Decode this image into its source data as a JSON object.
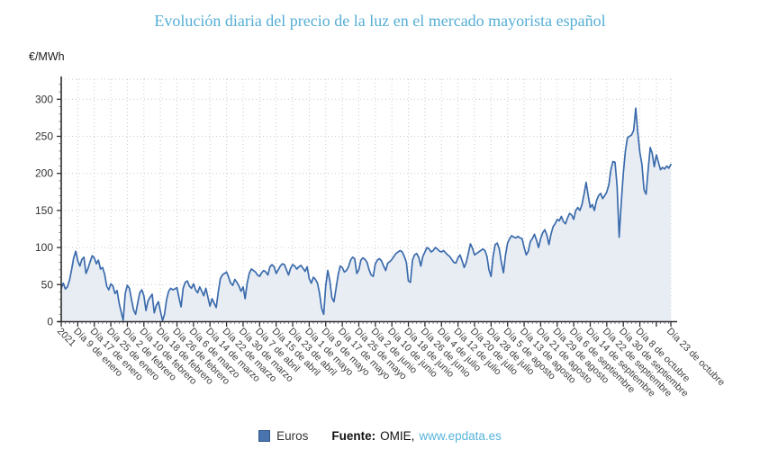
{
  "title": "Evolución diaria del precio de la luz en el mercado mayorista español",
  "y_axis_unit": "€/MWh",
  "legend": {
    "items": [
      {
        "label": "Euros",
        "color": "#4a74ad"
      }
    ]
  },
  "footer": {
    "source_label": "Fuente:",
    "source_name": "OMIE,",
    "source_link": "www.epdata.es"
  },
  "colors": {
    "title": "#54aed6",
    "series_line": "#3b6bac",
    "series_area": "#e8edf4",
    "link": "#58b3dc",
    "axis": "#2d2d2d",
    "grid": "#c9c9c9"
  },
  "chart_data": {
    "type": "area",
    "title": "Evolución diaria del precio de la luz en el mercado mayorista español",
    "xlabel": "",
    "ylabel": "€/MWh",
    "ylim": [
      0,
      300
    ],
    "y_ticks": [
      0,
      50,
      100,
      150,
      200,
      250,
      300
    ],
    "grid": true,
    "legend_position": "bottom",
    "x_days_total": 295,
    "x_ticks": [
      {
        "d": 0,
        "label": "2021"
      },
      {
        "d": 8,
        "label": "Día 9 de enero"
      },
      {
        "d": 16,
        "label": "Día 17 de enero"
      },
      {
        "d": 24,
        "label": "Día 25 de enero"
      },
      {
        "d": 32,
        "label": "Día 2 de febrero"
      },
      {
        "d": 40,
        "label": "Día 10 de febrero"
      },
      {
        "d": 48,
        "label": "Día 18 de febrero"
      },
      {
        "d": 56,
        "label": "Día 26 de febrero"
      },
      {
        "d": 64,
        "label": "Día 6 de marzo"
      },
      {
        "d": 72,
        "label": "Día 14 de marzo"
      },
      {
        "d": 80,
        "label": "Día 22 de marzo"
      },
      {
        "d": 88,
        "label": "Día 30 de marzo"
      },
      {
        "d": 96,
        "label": "Día 7 de abril"
      },
      {
        "d": 104,
        "label": "Día 15 de abril"
      },
      {
        "d": 112,
        "label": "Día 23 de abril"
      },
      {
        "d": 120,
        "label": "Día 1 de mayo"
      },
      {
        "d": 128,
        "label": "Día 9 de mayo"
      },
      {
        "d": 136,
        "label": "Día 17 de mayo"
      },
      {
        "d": 144,
        "label": "Día 25 de mayo"
      },
      {
        "d": 152,
        "label": "Día 2 de junio"
      },
      {
        "d": 160,
        "label": "Día 10 de junio"
      },
      {
        "d": 168,
        "label": "Día 18 de junio"
      },
      {
        "d": 176,
        "label": "Día 26 de junio"
      },
      {
        "d": 184,
        "label": "Día 4 de julio"
      },
      {
        "d": 192,
        "label": "Día 12 de julio"
      },
      {
        "d": 200,
        "label": "Día 20 de julio"
      },
      {
        "d": 208,
        "label": "Día 28 de julio"
      },
      {
        "d": 216,
        "label": "Día 5 de agosto"
      },
      {
        "d": 224,
        "label": "Día 13 de agosto"
      },
      {
        "d": 232,
        "label": "Día 21 de agosto"
      },
      {
        "d": 240,
        "label": "Día 29 de agosto"
      },
      {
        "d": 248,
        "label": "Día 6 de septiembre"
      },
      {
        "d": 256,
        "label": "Día 14 de septiembre"
      },
      {
        "d": 264,
        "label": "Día 22 de septiembre"
      },
      {
        "d": 272,
        "label": "Día 30 de septiembre"
      },
      {
        "d": 280,
        "label": "Día 8 de octubre"
      },
      {
        "d": 288,
        "label": ""
      },
      {
        "d": 295,
        "label": "Día 23 de octubre"
      }
    ],
    "series": [
      {
        "name": "Euros",
        "color": "#3b6bac",
        "area_color": "#e8edf4",
        "months": [
          "enero",
          "febrero",
          "marzo",
          "abril",
          "mayo",
          "junio",
          "julio",
          "agosto",
          "septiembre",
          "octubre"
        ],
        "values_by_month": [
          [
            45,
            52,
            44,
            47,
            56,
            70,
            86,
            95,
            82,
            75,
            84,
            87,
            65,
            72,
            81,
            89,
            86,
            78,
            83,
            71,
            73,
            64,
            48,
            43,
            51,
            48,
            38,
            42,
            25,
            13,
            2
          ],
          [
            38,
            49,
            45,
            30,
            16,
            10,
            25,
            39,
            43,
            35,
            15,
            28,
            33,
            37,
            12,
            22,
            27,
            14,
            1.5,
            10,
            30,
            41,
            45,
            43,
            44,
            46,
            32,
            20
          ],
          [
            45,
            53,
            55,
            48,
            45,
            51,
            43,
            39,
            47,
            41,
            35,
            45,
            33,
            21,
            31,
            25,
            19,
            40,
            58,
            63,
            65,
            67,
            60,
            52,
            49,
            57,
            53,
            48,
            41,
            47,
            31
          ],
          [
            52,
            65,
            71,
            69,
            67,
            63,
            61,
            66,
            69,
            67,
            63,
            74,
            77,
            74,
            65,
            70,
            75,
            78,
            77,
            70,
            63,
            72,
            77,
            75,
            71,
            74,
            76,
            72,
            68,
            74
          ],
          [
            58,
            52,
            60,
            57,
            52,
            38,
            18,
            10,
            48,
            69,
            55,
            32,
            27,
            45,
            63,
            75,
            73,
            67,
            69,
            74,
            83,
            87,
            85,
            65,
            70,
            83,
            86,
            84,
            80,
            70,
            63
          ],
          [
            61,
            78,
            83,
            85,
            82,
            75,
            69,
            79,
            81,
            84,
            88,
            92,
            94,
            96,
            94,
            88,
            80,
            55,
            53,
            83,
            90,
            92,
            87,
            75,
            88,
            94,
            100,
            98,
            94,
            96
          ],
          [
            100,
            98,
            95,
            94,
            96,
            93,
            90,
            88,
            84,
            80,
            79,
            86,
            90,
            82,
            73,
            80,
            92,
            105,
            99,
            90,
            92,
            94,
            96,
            98,
            96,
            88,
            70,
            61,
            88,
            104,
            106
          ],
          [
            98,
            80,
            66,
            90,
            106,
            112,
            116,
            114,
            113,
            115,
            113,
            112,
            100,
            90,
            95,
            108,
            112,
            118,
            110,
            100,
            112,
            120,
            124,
            117,
            104,
            118,
            128,
            132,
            138,
            136,
            142
          ],
          [
            135,
            132,
            140,
            146,
            144,
            138,
            150,
            154,
            150,
            158,
            172,
            188,
            170,
            154,
            158,
            150,
            163,
            170,
            173,
            166,
            170,
            175,
            185,
            205,
            216,
            215,
            183,
            114,
            160,
            200
          ],
          [
            230,
            248,
            250,
            252,
            258,
            288,
            255,
            228,
            212,
            178,
            172,
            205,
            235,
            227,
            209,
            225,
            215,
            205,
            208,
            206,
            210,
            207,
            212
          ]
        ]
      }
    ]
  }
}
